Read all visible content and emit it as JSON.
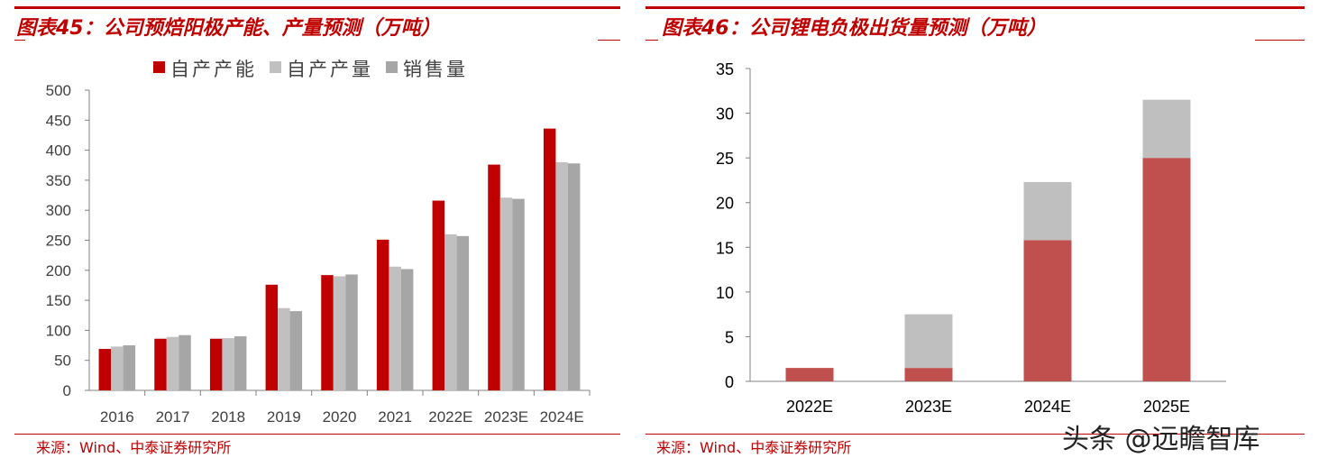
{
  "left": {
    "title": "图表45：公司预焙阳极产能、产量预测（万吨）",
    "source": "来源：Wind、中泰证券研究所"
  },
  "right": {
    "title": "图表46：公司锂电负极出货量预测（万吨）",
    "source": "来源：Wind、中泰证券研究所"
  },
  "watermark": "头条 @远瞻智库",
  "colors": {
    "accent": "#c00000",
    "series_a": "#c00000",
    "series_b": "#c0c0c0",
    "series_c": "#a6a6a6",
    "stack_bottom": "#c0504d",
    "stack_top": "#bfbfbf"
  },
  "chart_data": [
    {
      "type": "bar",
      "categories": [
        "2016",
        "2017",
        "2018",
        "2019",
        "2020",
        "2021",
        "2022E",
        "2023E",
        "2024E"
      ],
      "series": [
        {
          "name": "自产产能",
          "values": [
            69,
            86,
            86,
            176,
            192,
            251,
            316,
            376,
            436
          ]
        },
        {
          "name": "自产产量",
          "values": [
            73,
            89,
            87,
            137,
            190,
            206,
            260,
            321,
            380
          ]
        },
        {
          "name": "销售量",
          "values": [
            75,
            92,
            90,
            132,
            193,
            202,
            257,
            319,
            378
          ]
        }
      ],
      "ylim": [
        0,
        500
      ],
      "yticks": [
        0,
        50,
        100,
        150,
        200,
        250,
        300,
        350,
        400,
        450,
        500
      ],
      "legend": "top"
    },
    {
      "type": "bar",
      "stacked": true,
      "categories": [
        "2022E",
        "2023E",
        "2024E",
        "2025E"
      ],
      "series": [
        {
          "values": [
            1.5,
            1.5,
            15.8,
            25
          ]
        },
        {
          "values": [
            0,
            6,
            6.5,
            6.5
          ]
        }
      ],
      "ylim": [
        0,
        35
      ],
      "yticks": [
        0,
        5,
        10,
        15,
        20,
        25,
        30,
        35
      ]
    }
  ]
}
